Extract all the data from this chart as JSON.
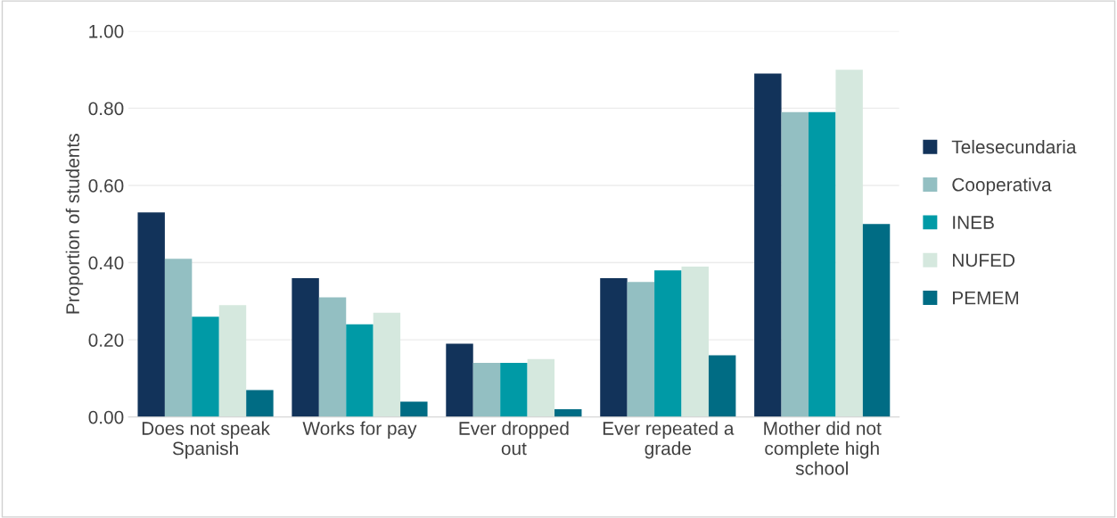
{
  "chart_data": {
    "type": "bar",
    "ylabel": "Proportion of students",
    "categories": [
      "Does not speak\nSpanish",
      "Works for pay",
      "Ever dropped\nout",
      "Ever repeated a\ngrade",
      "Mother did not\ncomplete high\nschool"
    ],
    "series": [
      {
        "name": "Telesecundaria",
        "color": "#12335a",
        "values": [
          0.53,
          0.36,
          0.19,
          0.36,
          0.89
        ]
      },
      {
        "name": "Cooperativa",
        "color": "#93bfc2",
        "values": [
          0.41,
          0.31,
          0.14,
          0.35,
          0.79
        ]
      },
      {
        "name": "INEB",
        "color": "#009aa6",
        "values": [
          0.26,
          0.24,
          0.14,
          0.38,
          0.79
        ]
      },
      {
        "name": "NUFED",
        "color": "#d5e8de",
        "values": [
          0.29,
          0.27,
          0.15,
          0.39,
          0.9
        ]
      },
      {
        "name": "PEMEM",
        "color": "#006c84",
        "values": [
          0.07,
          0.04,
          0.02,
          0.16,
          0.5
        ]
      }
    ],
    "ylim": [
      0,
      1
    ],
    "yticks": [
      {
        "value": 0,
        "label": "0.00"
      },
      {
        "value": 0.2,
        "label": "0.20"
      },
      {
        "value": 0.4,
        "label": "0.40"
      },
      {
        "value": 0.6,
        "label": "0.60"
      },
      {
        "value": 0.8,
        "label": "0.80"
      },
      {
        "value": 1,
        "label": "1.00"
      }
    ],
    "grid": "y",
    "legend": "right"
  }
}
